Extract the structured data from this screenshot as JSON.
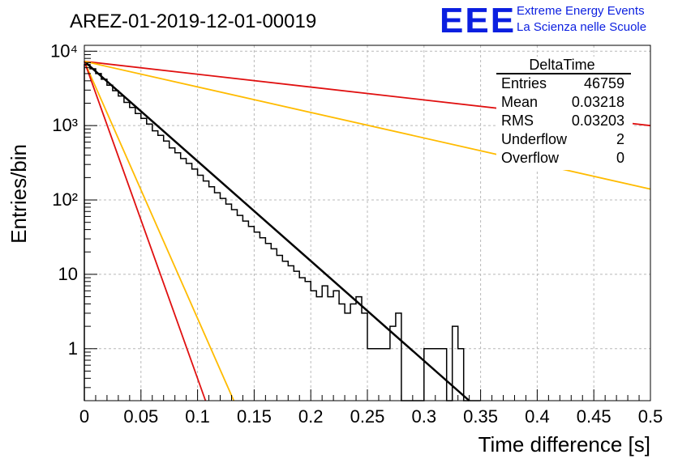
{
  "chart_data": {
    "type": "line",
    "title": "AREZ-01-2019-12-01-00019",
    "xlabel": "Time difference [s]",
    "ylabel": "Entries/bin",
    "xlim": [
      0,
      0.5
    ],
    "ylim": [
      0.2,
      12000
    ],
    "log_y": true,
    "grid": true,
    "x_ticks": [
      0,
      0.05,
      0.1,
      0.15,
      0.2,
      0.25,
      0.3,
      0.35,
      0.4,
      0.45,
      0.5
    ],
    "x_tick_labels": [
      "0",
      "0.05",
      "0.1",
      "0.15",
      "0.2",
      "0.25",
      "0.3",
      "0.35",
      "0.4",
      "0.45",
      "0.5"
    ],
    "y_ticks": [
      1,
      10,
      100,
      1000,
      10000
    ],
    "y_tick_labels": [
      "1",
      "10",
      "10²",
      "10³",
      "10⁴"
    ],
    "histogram": {
      "bin_width": 0.005,
      "color": "#000000",
      "bins": [
        [
          0.0,
          6600
        ],
        [
          0.005,
          5800
        ],
        [
          0.01,
          5000
        ],
        [
          0.015,
          4200
        ],
        [
          0.02,
          3500
        ],
        [
          0.025,
          2950
        ],
        [
          0.03,
          2500
        ],
        [
          0.035,
          2050
        ],
        [
          0.04,
          1750
        ],
        [
          0.045,
          1450
        ],
        [
          0.05,
          1250
        ],
        [
          0.055,
          1050
        ],
        [
          0.06,
          850
        ],
        [
          0.065,
          740
        ],
        [
          0.07,
          620
        ],
        [
          0.075,
          500
        ],
        [
          0.08,
          430
        ],
        [
          0.085,
          360
        ],
        [
          0.09,
          310
        ],
        [
          0.095,
          260
        ],
        [
          0.1,
          215
        ],
        [
          0.105,
          180
        ],
        [
          0.11,
          150
        ],
        [
          0.115,
          125
        ],
        [
          0.12,
          105
        ],
        [
          0.125,
          88
        ],
        [
          0.13,
          74
        ],
        [
          0.135,
          62
        ],
        [
          0.14,
          52
        ],
        [
          0.145,
          44
        ],
        [
          0.15,
          37
        ],
        [
          0.155,
          31
        ],
        [
          0.16,
          26
        ],
        [
          0.165,
          22
        ],
        [
          0.17,
          18
        ],
        [
          0.175,
          15
        ],
        [
          0.18,
          13
        ],
        [
          0.185,
          11
        ],
        [
          0.19,
          9
        ],
        [
          0.195,
          8
        ],
        [
          0.2,
          6
        ],
        [
          0.205,
          5
        ],
        [
          0.21,
          7
        ],
        [
          0.215,
          5
        ],
        [
          0.22,
          6
        ],
        [
          0.225,
          4
        ],
        [
          0.23,
          3
        ],
        [
          0.235,
          4
        ],
        [
          0.24,
          5
        ],
        [
          0.245,
          3
        ],
        [
          0.25,
          1
        ],
        [
          0.255,
          1
        ],
        [
          0.26,
          1
        ],
        [
          0.265,
          1
        ],
        [
          0.27,
          2
        ],
        [
          0.275,
          3
        ],
        [
          0.28,
          0
        ],
        [
          0.285,
          0
        ],
        [
          0.29,
          0
        ],
        [
          0.295,
          0
        ],
        [
          0.3,
          1
        ],
        [
          0.305,
          1
        ],
        [
          0.31,
          1
        ],
        [
          0.315,
          1
        ],
        [
          0.32,
          0
        ],
        [
          0.325,
          2
        ],
        [
          0.33,
          1
        ],
        [
          0.335,
          0
        ],
        [
          0.34,
          0
        ],
        [
          0.345,
          0
        ]
      ]
    },
    "series": [
      {
        "color": "#000000",
        "x": [
          0,
          0.34
        ],
        "y": [
          7300,
          0.2
        ]
      },
      {
        "color": "#e01010",
        "x": [
          0,
          0.5
        ],
        "y": [
          7300,
          1000
        ]
      },
      {
        "color": "#ffbb00",
        "x": [
          0,
          0.5
        ],
        "y": [
          7300,
          140
        ]
      },
      {
        "color": "#ffbb00",
        "x": [
          0,
          0.132
        ],
        "y": [
          7300,
          0.2
        ]
      },
      {
        "color": "#e01010",
        "x": [
          0,
          0.107
        ],
        "y": [
          7300,
          0.2
        ]
      }
    ]
  },
  "logo": {
    "text": "EEE",
    "line1": "Extreme Energy Events",
    "line2": "La Scienza nelle Scuole",
    "color": "#0b1fe0"
  },
  "stats": {
    "name": "DeltaTime",
    "rows": [
      {
        "label": "Entries",
        "value": "46759"
      },
      {
        "label": "Mean",
        "value": "0.03218"
      },
      {
        "label": "RMS",
        "value": "0.03203"
      },
      {
        "label": "Underflow",
        "value": "2"
      },
      {
        "label": "Overflow",
        "value": "0"
      }
    ]
  }
}
